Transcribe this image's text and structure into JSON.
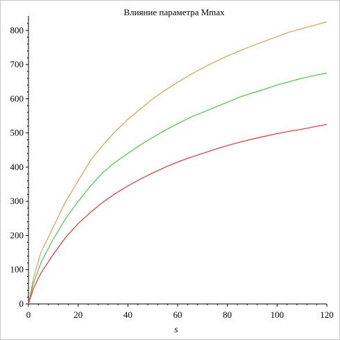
{
  "chart_data": {
    "type": "line",
    "title": "Влияние параметра Mmax",
    "xlabel": "s",
    "ylabel": "",
    "xlim": [
      0,
      120
    ],
    "ylim": [
      0,
      830
    ],
    "grid": false,
    "x_ticks": [
      0,
      20,
      40,
      60,
      80,
      100,
      120
    ],
    "y_ticks": [
      0,
      100,
      200,
      300,
      400,
      500,
      600,
      700,
      800
    ],
    "x": [
      0,
      2,
      5,
      10,
      15,
      20,
      25,
      30,
      35,
      40,
      45,
      50,
      55,
      60,
      65,
      70,
      75,
      80,
      85,
      90,
      95,
      100,
      105,
      110,
      115,
      120
    ],
    "series": [
      {
        "color": "#d9a050",
        "values": [
          0,
          75,
          150,
          225,
          300,
          360,
          420,
          465,
          505,
          540,
          570,
          600,
          625,
          648,
          670,
          690,
          708,
          725,
          740,
          755,
          768,
          782,
          795,
          805,
          815,
          825
        ]
      },
      {
        "color": "#44cc44",
        "values": [
          0,
          60,
          120,
          190,
          250,
          300,
          345,
          385,
          415,
          440,
          465,
          487,
          508,
          527,
          545,
          560,
          575,
          590,
          605,
          617,
          628,
          640,
          650,
          660,
          668,
          675
        ]
      },
      {
        "color": "#ee3333",
        "values": [
          0,
          45,
          90,
          145,
          195,
          235,
          268,
          298,
          323,
          345,
          365,
          383,
          400,
          415,
          428,
          440,
          452,
          463,
          473,
          482,
          490,
          498,
          505,
          511,
          518,
          525
        ]
      }
    ]
  }
}
